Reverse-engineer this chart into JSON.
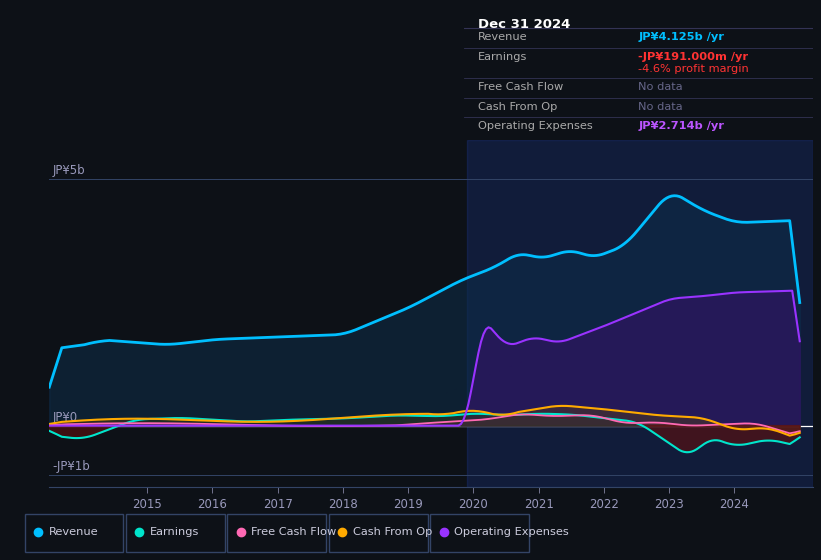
{
  "bg_color": "#0d1117",
  "chart_bg": "#0d1117",
  "y_label_top": "JP¥5b",
  "y_label_zero": "JP¥0",
  "y_label_neg": "-JP¥1b",
  "x_ticks": [
    2015,
    2016,
    2017,
    2018,
    2019,
    2020,
    2021,
    2022,
    2023,
    2024
  ],
  "ylim": [
    -1.25,
    5.8
  ],
  "xlim": [
    2013.5,
    2025.2
  ],
  "table_title": "Dec 31 2024",
  "table_rows": [
    {
      "label": "Revenue",
      "value": "JP¥4.125b /yr",
      "vc": "#00bfff",
      "sub": null,
      "sc": null
    },
    {
      "label": "Earnings",
      "value": "-JP¥191.000m /yr",
      "vc": "#ff3333",
      "sub": "-4.6% profit margin",
      "sc": "#ff3333"
    },
    {
      "label": "Free Cash Flow",
      "value": "No data",
      "vc": "#666688",
      "sub": null,
      "sc": null
    },
    {
      "label": "Cash From Op",
      "value": "No data",
      "vc": "#666688",
      "sub": null,
      "sc": null
    },
    {
      "label": "Operating Expenses",
      "value": "JP¥2.714b /yr",
      "vc": "#bb55ff",
      "sub": null,
      "sc": null
    }
  ],
  "legend_items": [
    {
      "label": "Revenue",
      "color": "#00bfff"
    },
    {
      "label": "Earnings",
      "color": "#00e5cc"
    },
    {
      "label": "Free Cash Flow",
      "color": "#ff69b4"
    },
    {
      "label": "Cash From Op",
      "color": "#ffaa00"
    },
    {
      "label": "Operating Expenses",
      "color": "#9933ff"
    }
  ],
  "revenue_color": "#00bfff",
  "earnings_color": "#00e5cc",
  "fcf_color": "#ff69b4",
  "cfo_color": "#ffaa00",
  "opex_color": "#9933ff",
  "shade_start": 2019.9,
  "shade_end": 2025.2
}
